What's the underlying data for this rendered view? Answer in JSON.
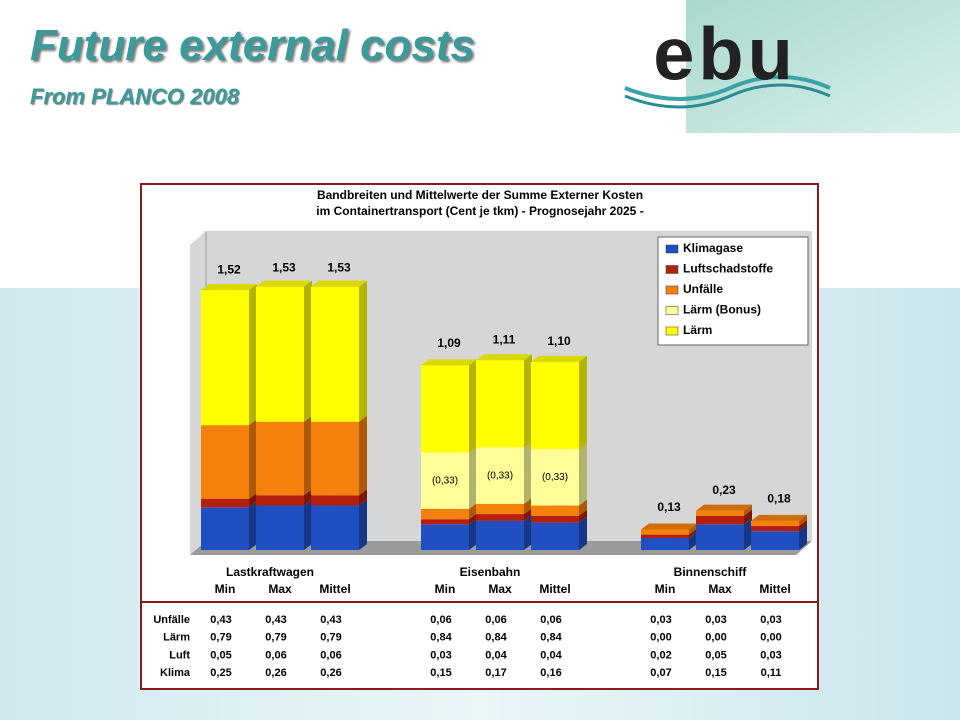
{
  "header": {
    "title": "Future external costs",
    "subtitle": "From PLANCO 2008",
    "logo": "ebu"
  },
  "chart_data": {
    "type": "bar",
    "stacked": true,
    "title": [
      "Bandbreiten und Mittelwerte der Summe Externer Kosten",
      "im Containertransport (Cent je tkm) - Prognosejahr 2025 -"
    ],
    "groups": [
      "Lastkraftwagen",
      "Eisenbahn",
      "Binnenschiff"
    ],
    "categories": [
      "Min",
      "Max",
      "Mittel",
      "Min",
      "Max",
      "Mittel",
      "Min",
      "Max",
      "Mittel"
    ],
    "series": [
      {
        "name": "Klimagase",
        "color": "#1f4fc0",
        "values": [
          0.25,
          0.26,
          0.26,
          0.15,
          0.17,
          0.16,
          0.07,
          0.15,
          0.11
        ]
      },
      {
        "name": "Luftschadstoffe",
        "color": "#b5200d",
        "values": [
          0.05,
          0.06,
          0.06,
          0.03,
          0.04,
          0.04,
          0.02,
          0.05,
          0.03
        ]
      },
      {
        "name": "Unfälle",
        "color": "#f5800a",
        "values": [
          0.43,
          0.43,
          0.43,
          0.06,
          0.06,
          0.06,
          0.03,
          0.03,
          0.03
        ]
      },
      {
        "name": "Lärm (Bonus)",
        "color": "#ffff99",
        "values": [
          null,
          null,
          null,
          0.33,
          0.33,
          0.33,
          null,
          null,
          null
        ],
        "value_labels": [
          null,
          null,
          null,
          "(0,33)",
          "(0,33)",
          "(0,33)",
          null,
          null,
          null
        ]
      },
      {
        "name": "Lärm",
        "color": "#ffff00",
        "values": [
          0.79,
          0.79,
          0.79,
          0.51,
          0.51,
          0.51,
          0,
          0,
          0
        ]
      }
    ],
    "totals": {
      "values": [
        1.52,
        1.53,
        1.53,
        1.09,
        1.11,
        1.1,
        0.13,
        0.23,
        0.18
      ],
      "value_labels": [
        "1,52",
        "1,53",
        "1,53",
        "1,09",
        "1,11",
        "1,10",
        "0,13",
        "0,23",
        "0,18"
      ]
    },
    "legend": "top-right"
  },
  "table": {
    "rows": [
      {
        "label": "Unfälle",
        "values": [
          "0,43",
          "0,43",
          "0,43",
          "0,06",
          "0,06",
          "0,06",
          "0,03",
          "0,03",
          "0,03"
        ]
      },
      {
        "label": "Lärm",
        "values": [
          "0,79",
          "0,79",
          "0,79",
          "0,84",
          "0,84",
          "0,84",
          "0,00",
          "0,00",
          "0,00"
        ]
      },
      {
        "label": "Luft",
        "values": [
          "0,05",
          "0,06",
          "0,06",
          "0,03",
          "0,04",
          "0,04",
          "0,02",
          "0,05",
          "0,03"
        ]
      },
      {
        "label": "Klima",
        "values": [
          "0,25",
          "0,26",
          "0,26",
          "0,15",
          "0,17",
          "0,16",
          "0,07",
          "0,15",
          "0,11"
        ]
      }
    ]
  }
}
